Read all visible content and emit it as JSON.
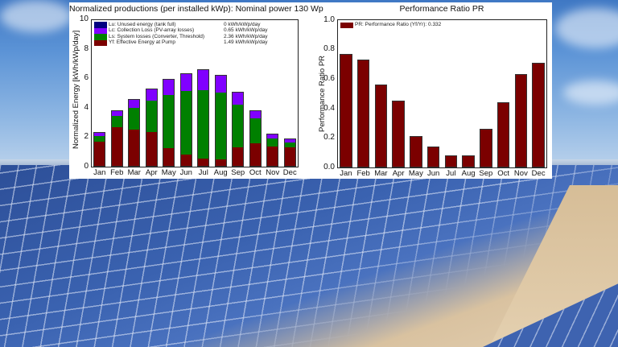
{
  "chart_data": [
    {
      "type": "bar",
      "stacked": true,
      "title": "Normalized productions (per installed kWp): Nominal power 130 Wp",
      "xlabel": "",
      "ylabel": "Normalized Energy [kWh/kWp/day]",
      "ylim": [
        0,
        10
      ],
      "yticks": [
        "0",
        "2",
        "4",
        "6",
        "8",
        "10"
      ],
      "categories": [
        "Jan",
        "Feb",
        "Mar",
        "Apr",
        "May",
        "Jun",
        "Jul",
        "Aug",
        "Sep",
        "Oct",
        "Nov",
        "Dec"
      ],
      "legend_position": "upper left",
      "series": [
        {
          "name": "Yf: Effective Energy at Pump",
          "value_label": "1.49 kWh/kWp/day",
          "color": "#7b0000",
          "values": [
            1.73,
            2.69,
            2.51,
            2.33,
            1.22,
            0.8,
            0.49,
            0.44,
            1.26,
            1.6,
            1.37,
            1.31
          ]
        },
        {
          "name": "Ls: System losses (Converter, Threshold)",
          "value_label": "2.36 kWh/kWp/day",
          "color": "#008000",
          "values": [
            0.38,
            0.79,
            1.53,
            2.21,
            3.68,
            4.35,
            4.74,
            4.6,
            2.97,
            1.7,
            0.61,
            0.38
          ]
        },
        {
          "name": "Lc: Collection Loss (PV-array losses)",
          "value_label": "0.65 kWh/kWp/day",
          "color": "#8000ff",
          "values": [
            0.22,
            0.33,
            0.57,
            0.76,
            1.07,
            1.21,
            1.37,
            1.21,
            0.84,
            0.53,
            0.26,
            0.22
          ]
        },
        {
          "name": "Lu: Unused energy (tank full)",
          "value_label": "0 kWh/kWp/day",
          "color": "#000080",
          "values": [
            0,
            0,
            0,
            0,
            0,
            0,
            0,
            0,
            0,
            0,
            0,
            0
          ]
        }
      ]
    },
    {
      "type": "bar",
      "title": "Performance Ratio PR",
      "xlabel": "",
      "ylabel": "Performance Ratio PR",
      "ylim": [
        0,
        1.0
      ],
      "yticks": [
        "0.0",
        "0.2",
        "0.4",
        "0.6",
        "0.8",
        "1.0"
      ],
      "categories": [
        "Jan",
        "Feb",
        "Mar",
        "Apr",
        "May",
        "Jun",
        "Jul",
        "Aug",
        "Sep",
        "Oct",
        "Nov",
        "Dec"
      ],
      "legend_position": "upper left",
      "series": [
        {
          "name": "PR: Performance Ratio (Yf/Yr): 0.332",
          "color": "#7b0000",
          "values": [
            0.77,
            0.73,
            0.56,
            0.45,
            0.21,
            0.14,
            0.08,
            0.08,
            0.26,
            0.44,
            0.63,
            0.71
          ]
        }
      ]
    }
  ]
}
